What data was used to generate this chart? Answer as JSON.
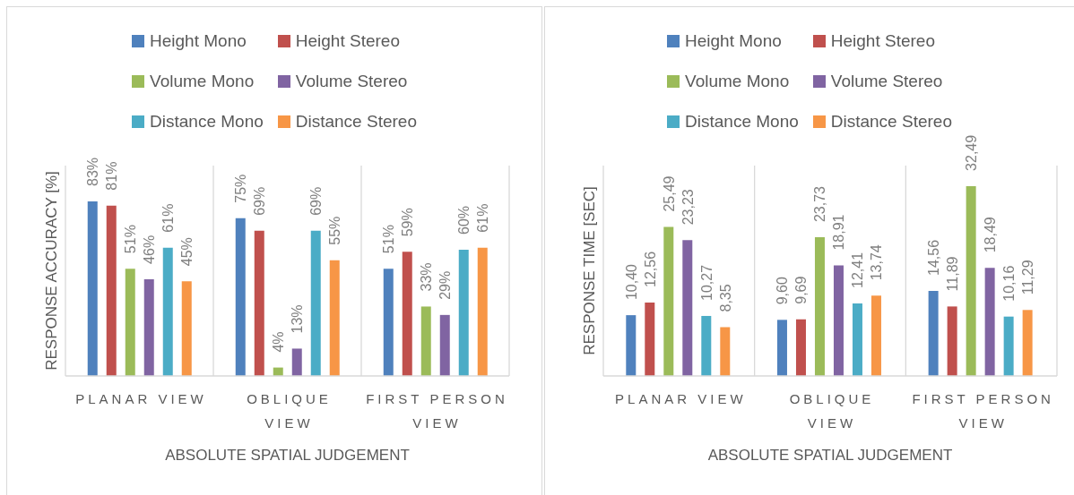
{
  "chart_data": [
    {
      "type": "bar",
      "categories": [
        "PLANAR VIEW",
        "OBLIQUE VIEW",
        "FIRST PERSON VIEW"
      ],
      "xlabel": "ABSOLUTE SPATIAL JUDGEMENT",
      "ylabel": "RESPONSE ACCURACY [%]",
      "legend": "top",
      "grid": "x",
      "tick_labels": "x",
      "series": [
        {
          "name": "Height Mono",
          "color": "#4f81bd",
          "values": [
            83,
            75,
            51
          ],
          "value_labels": [
            "83%",
            "75%",
            "51%"
          ]
        },
        {
          "name": "Height Stereo",
          "color": "#c0504d",
          "values": [
            81,
            69,
            59
          ],
          "value_labels": [
            "81%",
            "69%",
            "59%"
          ]
        },
        {
          "name": "Volume Mono",
          "color": "#9bbb59",
          "values": [
            51,
            4,
            33
          ],
          "value_labels": [
            "51%",
            "4%",
            "33%"
          ]
        },
        {
          "name": "Volume Stereo",
          "color": "#8064a2",
          "values": [
            46,
            13,
            29
          ],
          "value_labels": [
            "46%",
            "13%",
            "29%"
          ]
        },
        {
          "name": "Distance Mono",
          "color": "#4bacc6",
          "values": [
            61,
            69,
            60
          ],
          "value_labels": [
            "61%",
            "69%",
            "60%"
          ]
        },
        {
          "name": "Distance Stereo",
          "color": "#f79646",
          "values": [
            45,
            55,
            61
          ],
          "value_labels": [
            "45%",
            "55%",
            "61%"
          ]
        }
      ]
    },
    {
      "type": "bar",
      "categories": [
        "PLANAR VIEW",
        "OBLIQUE VIEW",
        "FIRST PERSON VIEW"
      ],
      "xlabel": "ABSOLUTE SPATIAL JUDGEMENT",
      "ylabel": "RESPONSE TIME [SEC]",
      "legend": "top",
      "grid": "x",
      "tick_labels": "x",
      "series": [
        {
          "name": "Height Mono",
          "color": "#4f81bd",
          "values": [
            10.4,
            9.6,
            14.56
          ],
          "value_labels": [
            "10,40",
            "9,60",
            "14,56"
          ]
        },
        {
          "name": "Height Stereo",
          "color": "#c0504d",
          "values": [
            12.56,
            9.69,
            11.89
          ],
          "value_labels": [
            "12,56",
            "9,69",
            "11,89"
          ]
        },
        {
          "name": "Volume Mono",
          "color": "#9bbb59",
          "values": [
            25.49,
            23.73,
            32.49
          ],
          "value_labels": [
            "25,49",
            "23,73",
            "32,49"
          ]
        },
        {
          "name": "Volume Stereo",
          "color": "#8064a2",
          "values": [
            23.23,
            18.91,
            18.49
          ],
          "value_labels": [
            "23,23",
            "18,91",
            "18,49"
          ]
        },
        {
          "name": "Distance Mono",
          "color": "#4bacc6",
          "values": [
            10.27,
            12.41,
            10.16
          ],
          "value_labels": [
            "10,27",
            "12,41",
            "10,16"
          ]
        },
        {
          "name": "Distance Stereo",
          "color": "#f79646",
          "values": [
            8.35,
            13.74,
            11.29
          ],
          "value_labels": [
            "8,35",
            "13,74",
            "11,29"
          ]
        }
      ]
    }
  ]
}
